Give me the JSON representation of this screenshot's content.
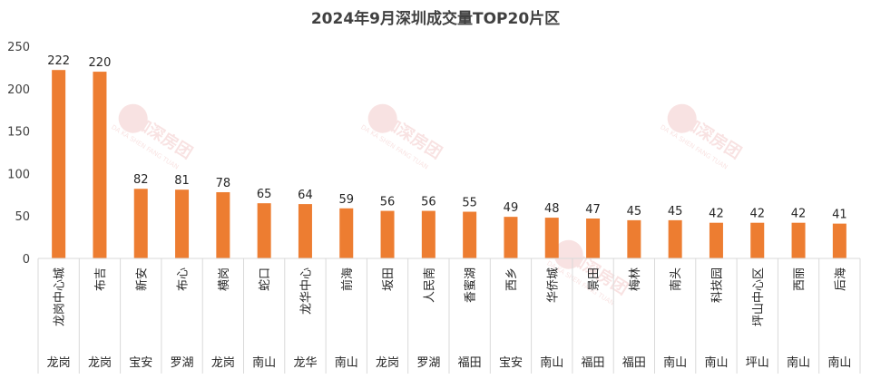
{
  "chart_data": {
    "type": "bar",
    "title": "2024年9月深圳成交量TOP20片区",
    "categories": [
      "龙岗中心城",
      "布吉",
      "新安",
      "布心",
      "横岗",
      "蛇口",
      "龙华中心",
      "前海",
      "坂田",
      "人民南",
      "香蜜湖",
      "西乡",
      "华侨城",
      "景田",
      "梅林",
      "南头",
      "科技园",
      "坪山中心区",
      "西丽",
      "后海"
    ],
    "districts": [
      "龙岗",
      "龙岗",
      "宝安",
      "罗湖",
      "龙岗",
      "南山",
      "龙华",
      "南山",
      "龙岗",
      "罗湖",
      "福田",
      "宝安",
      "南山",
      "福田",
      "福田",
      "南山",
      "南山",
      "坪山",
      "南山",
      "南山"
    ],
    "values": [
      222,
      220,
      82,
      81,
      78,
      65,
      64,
      59,
      56,
      56,
      55,
      49,
      48,
      47,
      45,
      45,
      42,
      42,
      42,
      41
    ],
    "ylim": [
      0,
      250
    ],
    "yticks": [
      0,
      50,
      100,
      150,
      200,
      250
    ],
    "grid": false,
    "legend": "none",
    "bar_color": "#ED7D31",
    "axis_color": "#D9D9D9"
  },
  "watermark": {
    "logo_text": "大咖深房团",
    "sub_text": "DA KA SHEN FANG TUAN",
    "color": "#D9534F"
  }
}
